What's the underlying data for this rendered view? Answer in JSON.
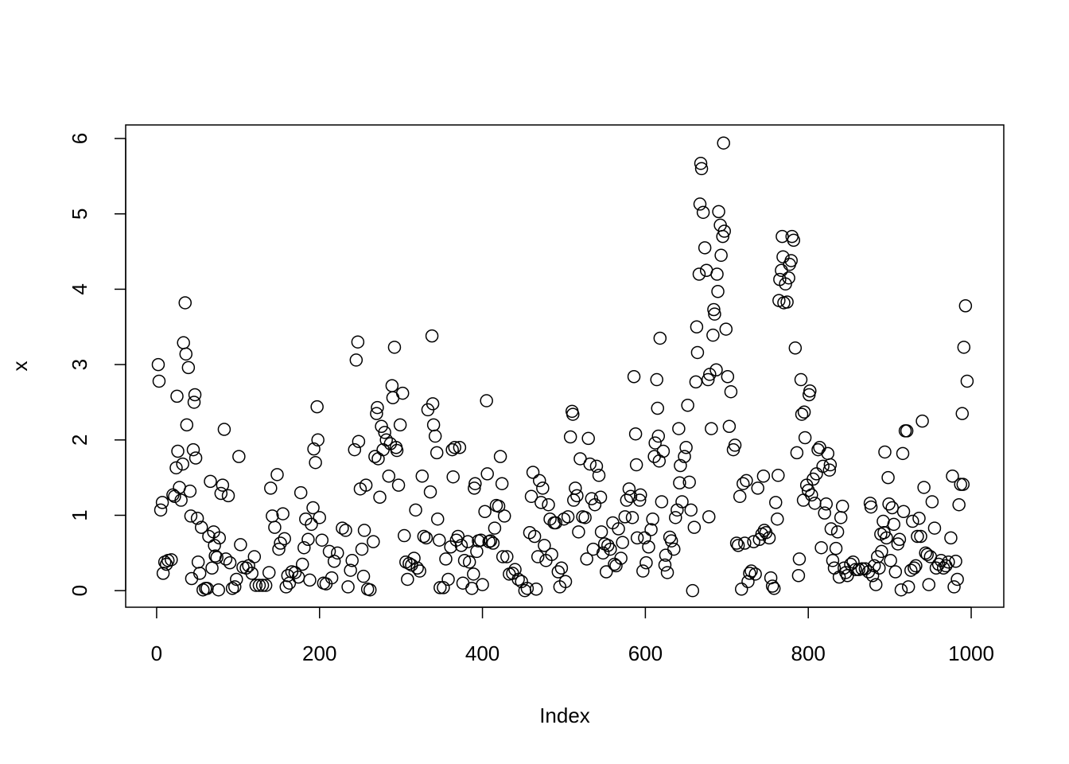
{
  "chart_data": {
    "type": "scatter",
    "x_label": "Index",
    "y_label": "x",
    "xlim": [
      -38,
      1040
    ],
    "ylim": [
      -0.22,
      6.18
    ],
    "xticks": [
      0,
      200,
      400,
      600,
      800,
      1000
    ],
    "yticks": [
      0,
      1,
      2,
      3,
      4,
      5,
      6
    ],
    "color": "#000000",
    "x": [
      2,
      3,
      5,
      7,
      8,
      10,
      12,
      14,
      18,
      20,
      22,
      24,
      25,
      26,
      28,
      30,
      32,
      33,
      35,
      36,
      37,
      39,
      41,
      42,
      43,
      45,
      46,
      47,
      48,
      50,
      51,
      53,
      55,
      57,
      60,
      62,
      64,
      66,
      68,
      70,
      71,
      72,
      74,
      76,
      77,
      79,
      81,
      83,
      85,
      88,
      90,
      93,
      96,
      98,
      101,
      103,
      106,
      110,
      113,
      117,
      120,
      122,
      126,
      130,
      134,
      138,
      140,
      142,
      145,
      148,
      150,
      152,
      155,
      157,
      159,
      161,
      163,
      166,
      170,
      174,
      177,
      179,
      181,
      183,
      186,
      188,
      190,
      192,
      193,
      195,
      197,
      198,
      200,
      203,
      205,
      208,
      212,
      215,
      218,
      222,
      228,
      232,
      235,
      238,
      240,
      243,
      245,
      247,
      248,
      250,
      252,
      254,
      255,
      257,
      259,
      262,
      266,
      268,
      270,
      271,
      272,
      274,
      276,
      278,
      280,
      282,
      285,
      287,
      289,
      290,
      292,
      294,
      295,
      297,
      299,
      302,
      304,
      306,
      308,
      310,
      313,
      316,
      318,
      320,
      323,
      326,
      328,
      331,
      333,
      336,
      338,
      339,
      340,
      342,
      344,
      345,
      347,
      348,
      352,
      355,
      358,
      361,
      363,
      364,
      366,
      368,
      370,
      372,
      374,
      376,
      378,
      382,
      384,
      387,
      389,
      390,
      391,
      393,
      395,
      398,
      400,
      403,
      405,
      406,
      408,
      410,
      413,
      415,
      417,
      420,
      422,
      424,
      425,
      427,
      430,
      433,
      437,
      440,
      444,
      448,
      452,
      455,
      458,
      460,
      462,
      464,
      466,
      468,
      470,
      472,
      474,
      476,
      478,
      481,
      483,
      485,
      488,
      490,
      493,
      495,
      497,
      500,
      502,
      505,
      508,
      510,
      511,
      512,
      514,
      516,
      518,
      520,
      523,
      526,
      528,
      530,
      532,
      534,
      536,
      538,
      540,
      543,
      545,
      546,
      548,
      550,
      552,
      554,
      557,
      560,
      562,
      564,
      567,
      570,
      572,
      575,
      577,
      580,
      582,
      584,
      586,
      588,
      589,
      590,
      593,
      594,
      597,
      599,
      601,
      604,
      607,
      609,
      611,
      612,
      614,
      615,
      616,
      617,
      618,
      620,
      622,
      624,
      625,
      627,
      630,
      632,
      635,
      637,
      639,
      641,
      642,
      643,
      645,
      648,
      650,
      652,
      654,
      656,
      658,
      660,
      662,
      663,
      664,
      666,
      667,
      668,
      669,
      671,
      673,
      675,
      677,
      678,
      679,
      681,
      683,
      684,
      685,
      687,
      688,
      689,
      690,
      692,
      693,
      695,
      696,
      697,
      699,
      701,
      703,
      705,
      708,
      710,
      712,
      714,
      716,
      718,
      720,
      722,
      724,
      726,
      728,
      730,
      733,
      735,
      738,
      740,
      743,
      745,
      746,
      748,
      752,
      754,
      756,
      758,
      760,
      762,
      763,
      764,
      765,
      767,
      768,
      769,
      770,
      772,
      774,
      776,
      777,
      779,
      780,
      782,
      784,
      786,
      788,
      789,
      791,
      792,
      794,
      795,
      796,
      798,
      800,
      801,
      802,
      804,
      806,
      808,
      810,
      812,
      814,
      816,
      818,
      820,
      822,
      824,
      826,
      827,
      828,
      830,
      832,
      834,
      836,
      838,
      840,
      842,
      844,
      846,
      848,
      852,
      855,
      858,
      862,
      866,
      870,
      874,
      876,
      877,
      879,
      881,
      883,
      885,
      887,
      889,
      890,
      892,
      893,
      894,
      896,
      898,
      899,
      901,
      903,
      905,
      907,
      910,
      912,
      914,
      916,
      917,
      919,
      921,
      923,
      926,
      928,
      930,
      932,
      934,
      936,
      938,
      940,
      942,
      944,
      946,
      948,
      950,
      952,
      955,
      957,
      960,
      963,
      966,
      969,
      972,
      975,
      977,
      979,
      981,
      983,
      985,
      987,
      989,
      990,
      991,
      993,
      995
    ],
    "values": [
      3.0,
      2.78,
      1.07,
      1.17,
      0.23,
      0.38,
      0.35,
      0.4,
      0.41,
      1.27,
      1.25,
      1.63,
      2.58,
      1.85,
      1.37,
      1.2,
      1.68,
      3.29,
      3.82,
      3.14,
      2.2,
      2.96,
      1.32,
      0.99,
      0.16,
      1.87,
      2.5,
      2.6,
      1.76,
      0.96,
      0.38,
      0.23,
      0.84,
      0.01,
      0.03,
      0.03,
      0.72,
      1.45,
      0.3,
      0.78,
      0.6,
      0.46,
      0.44,
      0.01,
      0.7,
      1.29,
      1.4,
      2.14,
      0.42,
      1.26,
      0.37,
      0.03,
      0.05,
      0.15,
      1.78,
      0.61,
      0.31,
      0.3,
      0.33,
      0.23,
      0.45,
      0.07,
      0.07,
      0.07,
      0.07,
      0.24,
      1.36,
      0.99,
      0.84,
      1.54,
      0.55,
      0.63,
      1.02,
      0.69,
      0.05,
      0.2,
      0.1,
      0.25,
      0.24,
      0.18,
      1.3,
      0.35,
      0.57,
      0.95,
      0.68,
      0.14,
      0.88,
      1.1,
      1.88,
      1.7,
      2.44,
      2.0,
      0.97,
      0.67,
      0.1,
      0.09,
      0.52,
      0.17,
      0.39,
      0.5,
      0.83,
      0.8,
      0.05,
      0.27,
      0.4,
      1.87,
      3.06,
      3.3,
      1.98,
      1.35,
      0.55,
      0.19,
      0.8,
      1.4,
      0.02,
      0.01,
      0.65,
      1.78,
      2.35,
      2.43,
      1.75,
      1.24,
      2.18,
      1.87,
      2.1,
      2.0,
      1.52,
      1.95,
      2.72,
      2.56,
      3.23,
      1.9,
      1.86,
      1.4,
      2.2,
      2.62,
      0.73,
      0.38,
      0.15,
      0.36,
      0.34,
      0.43,
      1.07,
      0.3,
      0.26,
      1.52,
      0.72,
      0.7,
      2.4,
      1.31,
      3.38,
      2.48,
      2.2,
      2.05,
      1.83,
      0.95,
      0.67,
      0.04,
      0.04,
      0.42,
      0.15,
      0.58,
      1.87,
      1.51,
      1.9,
      0.67,
      0.72,
      1.9,
      0.6,
      0.1,
      0.4,
      0.65,
      0.38,
      0.03,
      0.22,
      1.36,
      1.42,
      0.52,
      0.66,
      0.67,
      0.08,
      1.05,
      2.52,
      1.55,
      0.65,
      0.66,
      0.63,
      0.83,
      1.13,
      1.12,
      1.78,
      1.42,
      0.45,
      0.99,
      0.45,
      0.22,
      0.23,
      0.28,
      0.15,
      0.12,
      0.0,
      0.03,
      0.77,
      1.25,
      1.57,
      0.72,
      0.02,
      0.45,
      1.46,
      1.17,
      1.36,
      0.6,
      0.4,
      1.14,
      0.95,
      0.48,
      0.9,
      0.9,
      0.25,
      0.05,
      0.3,
      0.95,
      0.12,
      0.98,
      2.04,
      2.38,
      2.34,
      1.2,
      1.36,
      1.26,
      0.78,
      1.75,
      0.98,
      0.97,
      0.42,
      2.02,
      1.68,
      1.22,
      0.55,
      1.14,
      1.65,
      1.53,
      1.24,
      0.78,
      0.5,
      0.62,
      0.25,
      0.6,
      0.55,
      0.9,
      0.35,
      0.33,
      0.82,
      0.43,
      0.64,
      0.98,
      1.2,
      1.35,
      1.25,
      0.97,
      2.84,
      2.08,
      1.67,
      0.7,
      1.2,
      1.27,
      0.26,
      0.7,
      0.37,
      0.58,
      0.81,
      0.95,
      1.78,
      1.96,
      2.8,
      2.42,
      2.05,
      1.72,
      3.35,
      1.18,
      1.85,
      0.34,
      0.47,
      0.24,
      0.71,
      0.66,
      0.55,
      0.97,
      1.07,
      2.15,
      1.43,
      1.66,
      1.18,
      1.78,
      1.9,
      2.46,
      1.44,
      1.07,
      0.0,
      0.84,
      2.77,
      3.5,
      3.16,
      4.2,
      5.13,
      5.67,
      5.6,
      5.02,
      4.55,
      4.25,
      2.8,
      0.98,
      2.87,
      2.15,
      3.39,
      3.73,
      3.67,
      2.93,
      4.2,
      3.97,
      5.03,
      4.85,
      4.45,
      4.7,
      5.94,
      4.77,
      3.47,
      2.84,
      2.18,
      2.64,
      1.87,
      1.93,
      0.63,
      0.6,
      1.25,
      0.02,
      1.42,
      0.63,
      1.46,
      0.12,
      0.23,
      0.26,
      0.65,
      0.22,
      1.36,
      0.68,
      0.75,
      1.52,
      0.8,
      0.77,
      0.7,
      0.17,
      0.06,
      0.03,
      1.17,
      0.95,
      1.53,
      3.85,
      4.13,
      4.25,
      4.7,
      4.43,
      3.82,
      4.07,
      3.83,
      4.15,
      4.33,
      4.38,
      4.7,
      4.65,
      3.22,
      1.83,
      0.2,
      0.42,
      2.8,
      2.34,
      1.2,
      2.37,
      2.03,
      1.4,
      1.33,
      2.6,
      2.65,
      1.27,
      1.48,
      1.16,
      1.55,
      1.87,
      1.9,
      0.57,
      1.65,
      1.03,
      1.15,
      1.82,
      1.6,
      1.67,
      0.82,
      0.4,
      0.3,
      0.56,
      0.78,
      0.18,
      0.97,
      1.12,
      0.3,
      0.24,
      0.2,
      0.35,
      0.38,
      0.28,
      0.28,
      0.29,
      0.29,
      0.25,
      1.16,
      1.11,
      0.2,
      0.33,
      0.08,
      0.45,
      0.3,
      0.75,
      0.52,
      0.92,
      0.77,
      1.84,
      0.7,
      1.5,
      1.15,
      0.4,
      1.1,
      0.88,
      0.25,
      0.62,
      0.68,
      0.01,
      1.82,
      1.05,
      2.12,
      2.12,
      0.05,
      0.27,
      0.92,
      0.3,
      0.33,
      0.72,
      0.96,
      0.72,
      2.25,
      1.37,
      0.5,
      0.48,
      0.08,
      0.45,
      1.18,
      0.83,
      0.3,
      0.35,
      0.4,
      0.3,
      0.33,
      0.38,
      0.7,
      1.52,
      0.05,
      0.39,
      0.15,
      1.14,
      1.41,
      2.35,
      1.41,
      3.23,
      3.78,
      2.78
    ]
  }
}
